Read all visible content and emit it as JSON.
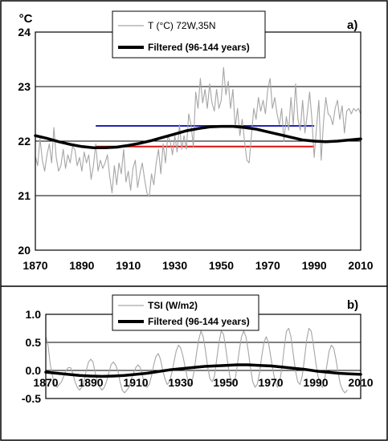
{
  "chart_data": [
    {
      "type": "line",
      "panel_label": "a)",
      "ylabel": "°C",
      "xlim": [
        1870,
        2010
      ],
      "ylim": [
        20,
        24
      ],
      "x_ticks": [
        "1870",
        "1890",
        "1910",
        "1930",
        "1950",
        "1970",
        "1990",
        "2010"
      ],
      "y_ticks": [
        "20",
        "21",
        "22",
        "23",
        "24"
      ],
      "grid": "horizontal",
      "legend_position": "top-center",
      "series": [
        {
          "name": "T (°C) 72W,35N",
          "color": "#a6a6a6",
          "style": "thin",
          "x_start": 1870,
          "x_step": 1,
          "values": [
            21.72,
            21.55,
            22.05,
            21.65,
            21.45,
            21.75,
            21.95,
            21.6,
            22.25,
            21.7,
            21.45,
            21.55,
            21.85,
            21.5,
            21.75,
            21.6,
            21.9,
            21.85,
            21.55,
            21.7,
            21.45,
            21.8,
            21.6,
            21.75,
            21.3,
            21.55,
            21.95,
            21.45,
            21.65,
            21.5,
            21.6,
            21.75,
            21.35,
            21.05,
            21.55,
            21.2,
            21.6,
            21.4,
            21.85,
            21.25,
            21.45,
            21.1,
            21.5,
            21.65,
            21.15,
            21.4,
            21.6,
            21.3,
            21.05,
            20.98,
            21.4,
            21.2,
            21.6,
            21.85,
            21.4,
            21.95,
            21.6,
            22.1,
            22.0,
            21.75,
            22.1,
            21.8,
            22.3,
            21.85,
            22.1,
            21.85,
            22.5,
            22.3,
            21.9,
            22.9,
            22.6,
            23.15,
            22.7,
            22.95,
            22.6,
            23.05,
            22.7,
            22.55,
            22.95,
            22.6,
            22.75,
            23.35,
            22.85,
            23.1,
            22.6,
            22.95,
            22.25,
            22.6,
            22.1,
            22.4,
            22.0,
            21.65,
            21.6,
            22.1,
            22.6,
            22.4,
            22.8,
            22.55,
            22.75,
            22.5,
            22.95,
            23.15,
            22.6,
            22.8,
            22.5,
            22.3,
            22.6,
            22.0,
            22.45,
            22.2,
            22.8,
            22.3,
            23.05,
            22.4,
            22.2,
            22.75,
            22.15,
            22.5,
            22.9,
            22.4,
            21.7,
            22.25,
            22.75,
            21.65,
            22.35,
            22.8,
            22.5,
            22.45,
            22.3,
            22.6,
            22.75,
            22.4,
            22.65,
            22.15,
            22.55,
            22.6,
            22.5,
            22.6,
            22.55,
            22.6,
            22.5
          ]
        },
        {
          "name": "Filtered (96-144 years)",
          "color": "#000000",
          "style": "thick",
          "x_start": 1870,
          "x_step": 5,
          "values": [
            22.1,
            22.05,
            21.99,
            21.94,
            21.9,
            21.88,
            21.88,
            21.89,
            21.92,
            21.96,
            22.01,
            22.07,
            22.13,
            22.19,
            22.23,
            22.26,
            22.27,
            22.27,
            22.25,
            22.22,
            22.17,
            22.12,
            22.07,
            22.02,
            22.0,
            21.99,
            22.0,
            22.02,
            22.04
          ]
        }
      ],
      "reference_lines": [
        {
          "color": "#2222bb",
          "x": [
            1896,
            1990
          ],
          "y": 22.28
        },
        {
          "color": "#dd1111",
          "x": [
            1896,
            1990
          ],
          "y": 21.9
        }
      ]
    },
    {
      "type": "line",
      "panel_label": "b)",
      "xlim": [
        1870,
        2010
      ],
      "ylim": [
        -0.5,
        1.0
      ],
      "x_ticks": [
        "1870",
        "1890",
        "1910",
        "1930",
        "1950",
        "1970",
        "1990",
        "2010"
      ],
      "y_ticks": [
        "-0.5",
        "0.0",
        "0.5",
        "1.0"
      ],
      "grid": "horizontal",
      "legend_position": "top-center",
      "series": [
        {
          "name": "TSI (W/m2)",
          "color": "#a6a6a6",
          "style": "thin",
          "x_start": 1870,
          "x_step": 1,
          "values": [
            0.6,
            0.45,
            0.1,
            -0.1,
            -0.25,
            -0.3,
            -0.25,
            -0.2,
            -0.1,
            0.0,
            0.05,
            0.05,
            -0.05,
            -0.2,
            -0.3,
            -0.35,
            -0.3,
            -0.2,
            0.0,
            0.15,
            0.2,
            0.15,
            -0.05,
            -0.2,
            -0.3,
            -0.35,
            -0.3,
            -0.2,
            -0.05,
            0.1,
            0.15,
            0.1,
            0.0,
            -0.2,
            -0.35,
            -0.4,
            -0.35,
            -0.3,
            -0.15,
            -0.05,
            0.05,
            0.1,
            0.05,
            -0.1,
            -0.25,
            -0.3,
            -0.25,
            -0.1,
            0.1,
            0.25,
            0.3,
            0.2,
            0.0,
            -0.15,
            -0.25,
            -0.2,
            -0.05,
            0.15,
            0.35,
            0.45,
            0.4,
            0.25,
            0.05,
            -0.15,
            -0.25,
            -0.2,
            0.0,
            0.3,
            0.55,
            0.7,
            0.6,
            0.35,
            0.05,
            -0.15,
            -0.2,
            -0.1,
            0.2,
            0.5,
            0.7,
            0.65,
            0.4,
            0.1,
            -0.15,
            -0.25,
            -0.2,
            0.05,
            0.35,
            0.6,
            0.7,
            0.6,
            0.35,
            0.05,
            -0.2,
            -0.3,
            -0.25,
            -0.05,
            0.25,
            0.5,
            0.6,
            0.5,
            0.25,
            0.0,
            -0.2,
            -0.3,
            -0.2,
            0.05,
            0.4,
            0.7,
            0.75,
            0.6,
            0.3,
            0.0,
            -0.2,
            -0.25,
            -0.1,
            0.2,
            0.55,
            0.75,
            0.7,
            0.45,
            0.15,
            -0.1,
            -0.25,
            -0.3,
            -0.15,
            0.1,
            0.35,
            0.45,
            0.4,
            0.2,
            -0.05,
            -0.25,
            -0.35,
            -0.4,
            -0.35
          ]
        },
        {
          "name": "Filtered (96-144 years)",
          "color": "#000000",
          "style": "thick",
          "x_start": 1870,
          "x_step": 5,
          "values": [
            -0.03,
            -0.05,
            -0.07,
            -0.09,
            -0.1,
            -0.105,
            -0.1,
            -0.09,
            -0.07,
            -0.05,
            -0.02,
            0.01,
            0.03,
            0.05,
            0.07,
            0.08,
            0.09,
            0.1,
            0.1,
            0.09,
            0.08,
            0.06,
            0.04,
            0.02,
            -0.01,
            -0.03,
            -0.05,
            -0.06,
            -0.07
          ]
        }
      ]
    }
  ]
}
